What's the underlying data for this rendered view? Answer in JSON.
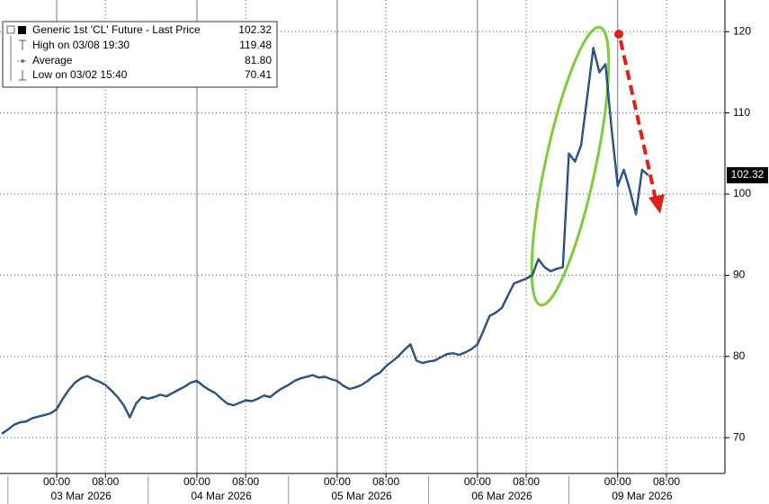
{
  "chart_data": {
    "type": "line",
    "legend": {
      "items": [
        {
          "label": "Generic 1st 'CL' Future - Last Price",
          "value": "102.32"
        },
        {
          "label": "High on 03/08 19:30",
          "value": "119.48"
        },
        {
          "label": "Average",
          "value": "81.80"
        },
        {
          "label": "Low on 03/02 15:40",
          "value": "70.41"
        }
      ]
    },
    "categories": [
      null,
      null,
      null,
      null,
      null,
      null,
      null,
      null,
      null,
      "00:00",
      null,
      null,
      null,
      null,
      null,
      null,
      null,
      "08:00",
      null,
      null,
      null,
      null,
      null,
      null,
      null,
      null,
      null,
      null,
      null,
      null,
      null,
      null,
      "00:00",
      null,
      null,
      null,
      null,
      null,
      null,
      null,
      "08:00",
      null,
      null,
      null,
      null,
      null,
      null,
      null,
      null,
      null,
      null,
      null,
      null,
      null,
      null,
      "00:00",
      null,
      null,
      null,
      null,
      null,
      null,
      null,
      "08:00",
      null,
      null,
      null,
      null,
      null,
      null,
      null,
      null,
      null,
      null,
      null,
      null,
      null,
      null,
      "00:00",
      null,
      null,
      null,
      null,
      null,
      null,
      null,
      "08:00",
      null,
      null,
      null,
      null,
      null,
      null,
      null,
      null,
      null,
      null,
      null,
      null,
      null,
      null,
      "00:00",
      null,
      null,
      null,
      null,
      null,
      null,
      null,
      "08:00",
      null,
      null,
      null,
      null,
      null,
      null,
      null,
      null,
      null
    ],
    "date_labels": [
      "03 Mar 2026",
      "04 Mar 2026",
      "05 Mar 2026",
      "06 Mar 2026",
      "09 Mar 2026"
    ],
    "values": [
      70.5,
      71.0,
      71.6,
      71.9,
      72.0,
      72.4,
      72.6,
      72.8,
      73.0,
      73.5,
      74.8,
      75.9,
      76.8,
      77.3,
      77.6,
      77.2,
      76.9,
      76.5,
      75.8,
      75.0,
      74.0,
      72.5,
      74.2,
      75.0,
      74.8,
      75.0,
      75.3,
      75.1,
      75.5,
      75.9,
      76.3,
      76.8,
      77.0,
      76.4,
      75.9,
      75.5,
      74.8,
      74.2,
      74.0,
      74.3,
      74.6,
      74.5,
      74.8,
      75.2,
      75.0,
      75.6,
      76.1,
      76.5,
      77.0,
      77.3,
      77.5,
      77.7,
      77.4,
      77.5,
      77.2,
      77.0,
      76.4,
      76.0,
      76.2,
      76.5,
      77.0,
      77.6,
      78.0,
      78.8,
      79.4,
      80.0,
      80.8,
      81.5,
      79.5,
      79.2,
      79.4,
      79.5,
      79.9,
      80.3,
      80.4,
      80.2,
      80.5,
      80.9,
      81.5,
      83.2,
      85.0,
      85.4,
      86.0,
      87.5,
      89.0,
      89.3,
      89.6,
      90.0,
      92.0,
      91.0,
      90.5,
      90.8,
      91.0,
      105.0,
      104.0,
      106.0,
      112.0,
      118.0,
      115.0,
      116.0,
      108.0,
      101.0,
      103.0,
      100.5,
      97.5,
      103.0,
      102.32,
      null,
      null,
      null,
      null,
      null,
      null,
      null,
      null,
      null,
      null,
      null,
      null
    ],
    "color": "#2a6cc0",
    "ylim": [
      65.6,
      123.9
    ],
    "yticks": [
      70,
      80,
      90,
      100,
      110,
      120
    ],
    "grid": true
  }
}
